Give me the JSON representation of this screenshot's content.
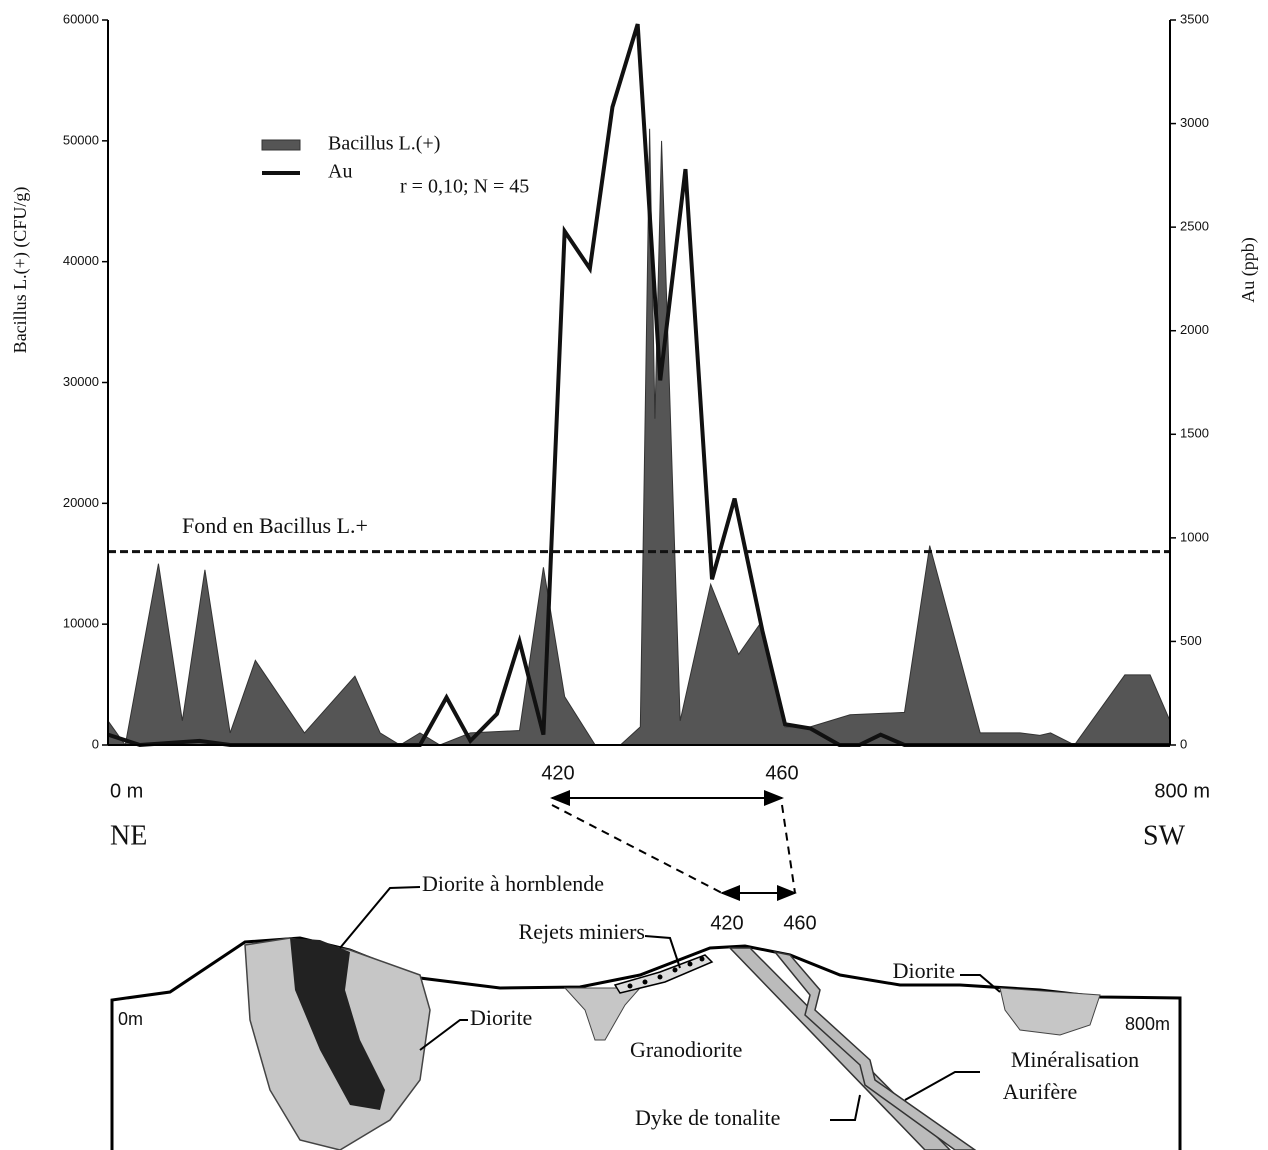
{
  "chart_data": {
    "type": "combo",
    "y_label": "Bacillus L.(+) (CFU/g)",
    "y2_label": "Au (ppb)",
    "annotation": "r = 0,10; N = 45",
    "background_label": "Fond en Bacillus L.+",
    "background_value": 16000,
    "range_marks": [
      420,
      460
    ],
    "direction_labels": [
      "NE",
      "SW"
    ],
    "xlim": [
      0,
      800
    ],
    "xticks": [
      {
        "value": 0,
        "label": "0 m"
      },
      {
        "value": 800,
        "label": "800 m"
      }
    ],
    "ylim": [
      0,
      60000
    ],
    "yticks": [
      0,
      10000,
      20000,
      30000,
      40000,
      50000,
      60000
    ],
    "y2lim": [
      0,
      3500
    ],
    "y2ticks": [
      0,
      500,
      1000,
      1500,
      2000,
      2500,
      3000,
      3500
    ],
    "series": [
      {
        "name": "Bacillus L.(+)",
        "type": "area",
        "color": "#555555",
        "x": [
          0,
          13,
          38,
          56,
          73,
          92,
          111,
          148,
          186,
          205,
          220,
          235,
          250,
          273,
          310,
          328,
          344,
          367,
          386,
          401,
          408,
          412,
          417,
          431,
          454,
          475,
          491,
          510,
          529,
          559,
          600,
          619,
          657,
          687,
          702,
          710,
          728,
          766,
          785,
          800
        ],
        "values": [
          2000,
          0,
          15000,
          2000,
          14500,
          1000,
          7000,
          1000,
          5700,
          1000,
          0,
          1000,
          0,
          1000,
          1200,
          14700,
          4000,
          0,
          0,
          1500,
          51000,
          27000,
          50000,
          2000,
          13300,
          7500,
          10000,
          1500,
          1500,
          2500,
          2700,
          16500,
          1000,
          1000,
          800,
          1000,
          0,
          5800,
          5800,
          2000
        ]
      },
      {
        "name": "Au",
        "type": "line",
        "color": "#111111",
        "axis": "y2",
        "x": [
          0,
          24,
          69,
          92,
          235,
          255,
          273,
          293,
          310,
          328,
          344,
          363,
          380,
          399,
          416,
          435,
          455,
          472,
          493,
          510,
          529,
          551,
          566,
          582,
          600,
          800
        ],
        "values": [
          50,
          0,
          20,
          0,
          0,
          230,
          20,
          150,
          500,
          50,
          2480,
          2300,
          3080,
          3480,
          1760,
          2780,
          800,
          1190,
          550,
          100,
          80,
          0,
          0,
          50,
          0,
          0
        ]
      }
    ]
  },
  "diagram": {
    "labels": {
      "hornblende": "Diorite à hornblende",
      "rejets": "Rejets miniers",
      "start": "0m",
      "end": "800m",
      "diorite_left": "Diorite",
      "diorite_right": "Diorite",
      "granodiorite": "Granodiorite",
      "mineralisation": [
        "Minéralisation",
        "Aurifère"
      ],
      "dyke": "Dyke de tonalite"
    },
    "range_marks": [
      420,
      460
    ]
  }
}
